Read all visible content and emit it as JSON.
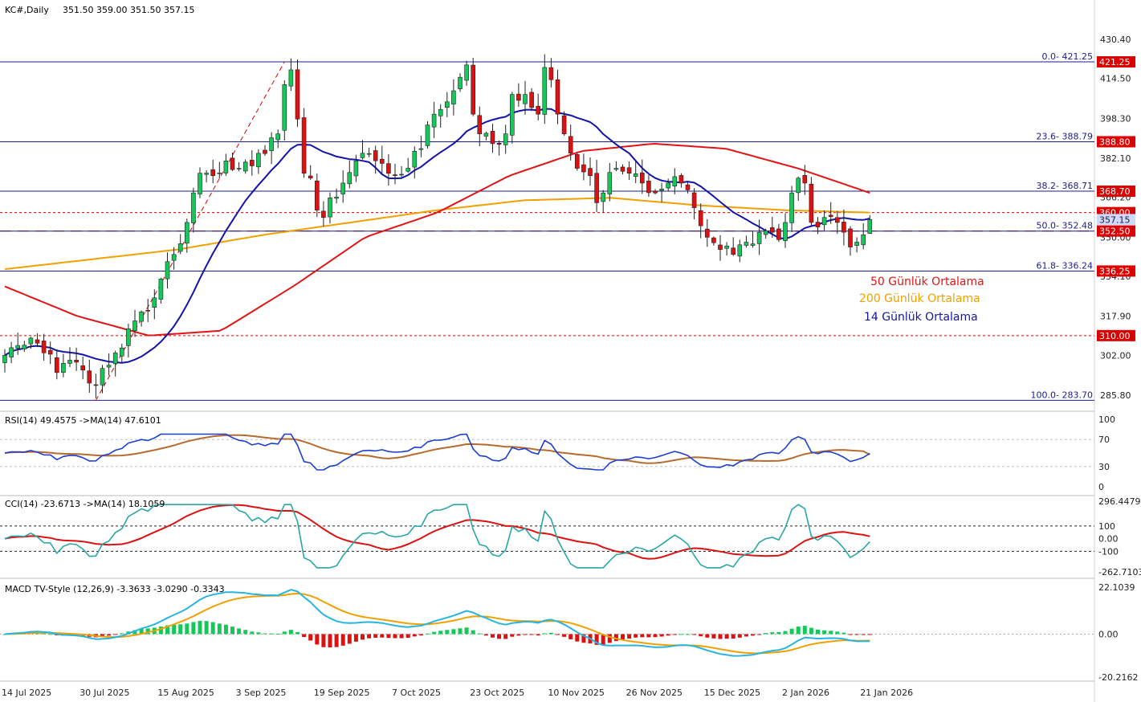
{
  "header": {
    "symbol": "KC#,Daily",
    "ohlc": "351.50 359.00 351.50 357.15"
  },
  "colors": {
    "bull": "#16c85a",
    "bear": "#dd1111",
    "ma14": "#1414a8",
    "ma50": "#e01414",
    "ma200": "#f0a000",
    "fib": "#1c1c8c",
    "level": "#dd0000",
    "rsi": "#1e3fcf",
    "rsi_ma": "#b86b2e",
    "cci": "#2aa6a6",
    "cci_ma": "#dd1111",
    "macd": "#27b5e0",
    "macd_signal": "#f0a000"
  },
  "chart_data": [
    {
      "type": "candlestick",
      "title": "KC#,Daily",
      "ylim": [
        283.7,
        434
      ],
      "price_ticks": [
        "430.40",
        "414.50",
        "398.30",
        "382.10",
        "366.20",
        "350.00",
        "334.10",
        "317.90",
        "302.00",
        "285.80"
      ],
      "fibonacci": [
        {
          "label": "0.0- 421.25",
          "price": 421.25
        },
        {
          "label": "23.6- 388.79",
          "price": 388.79
        },
        {
          "label": "38.2- 368.71",
          "price": 368.71
        },
        {
          "label": "50.0- 352.48",
          "price": 352.48
        },
        {
          "label": "61.8- 336.24",
          "price": 336.24
        },
        {
          "label": "100.0- 283.70",
          "price": 283.7
        }
      ],
      "levels": [
        {
          "label": "421.25",
          "price": 421.25,
          "style": "dashed",
          "tag": true
        },
        {
          "label": "388.80",
          "price": 388.8,
          "style": "dashed",
          "tag": true
        },
        {
          "label": "368.70",
          "price": 368.7,
          "style": "solid",
          "tag": true
        },
        {
          "label": "360.00",
          "price": 360.0,
          "style": "dotted",
          "tag": true
        },
        {
          "label": "352.50",
          "price": 352.5,
          "style": "dashed",
          "tag": true
        },
        {
          "label": "336.25",
          "price": 336.25,
          "style": "solid",
          "tag": true
        },
        {
          "label": "310.00",
          "price": 310.0,
          "style": "dotted",
          "tag": true
        }
      ],
      "current_price": {
        "label": "357.15",
        "price": 357.15
      },
      "date_labels": [
        {
          "label": "14 Jul 2025",
          "index": 0
        },
        {
          "label": "30 Jul 2025",
          "index": 12
        },
        {
          "label": "15 Aug 2025",
          "index": 24
        },
        {
          "label": "3 Sep 2025",
          "index": 36
        },
        {
          "label": "19 Sep 2025",
          "index": 48
        },
        {
          "label": "7 Oct 2025",
          "index": 60
        },
        {
          "label": "23 Oct 2025",
          "index": 72
        },
        {
          "label": "10 Nov 2025",
          "index": 84
        },
        {
          "label": "26 Nov 2025",
          "index": 96
        },
        {
          "label": "15 Dec 2025",
          "index": 108
        },
        {
          "label": "2 Jan 2026",
          "index": 120
        },
        {
          "label": "21 Jan 2026",
          "index": 132
        }
      ],
      "close_anchors": [
        [
          0,
          302
        ],
        [
          2,
          306
        ],
        [
          4,
          309
        ],
        [
          6,
          303
        ],
        [
          8,
          295
        ],
        [
          10,
          300
        ],
        [
          12,
          296
        ],
        [
          14,
          290
        ],
        [
          16,
          298
        ],
        [
          18,
          305
        ],
        [
          20,
          316
        ],
        [
          22,
          320
        ],
        [
          24,
          333
        ],
        [
          26,
          343
        ],
        [
          28,
          356
        ],
        [
          29,
          368
        ],
        [
          30,
          376
        ],
        [
          32,
          375
        ],
        [
          34,
          381
        ],
        [
          36,
          378
        ],
        [
          38,
          379
        ],
        [
          40,
          384
        ],
        [
          42,
          392
        ],
        [
          43,
          412
        ],
        [
          44,
          418
        ],
        [
          45,
          398
        ],
        [
          46,
          376
        ],
        [
          47,
          374
        ],
        [
          48,
          361
        ],
        [
          49,
          358
        ],
        [
          50,
          366
        ],
        [
          52,
          372
        ],
        [
          54,
          381
        ],
        [
          56,
          384
        ],
        [
          58,
          380
        ],
        [
          60,
          375
        ],
        [
          62,
          378
        ],
        [
          64,
          386
        ],
        [
          66,
          400
        ],
        [
          68,
          405
        ],
        [
          70,
          415
        ],
        [
          71,
          420
        ],
        [
          72,
          400
        ],
        [
          73,
          392
        ],
        [
          75,
          388
        ],
        [
          77,
          392
        ],
        [
          78,
          408
        ],
        [
          80,
          408
        ],
        [
          82,
          400
        ],
        [
          83,
          419
        ],
        [
          84,
          414
        ],
        [
          85,
          400
        ],
        [
          86,
          392
        ],
        [
          88,
          378
        ],
        [
          90,
          375
        ],
        [
          91,
          364
        ],
        [
          92,
          368
        ],
        [
          94,
          378
        ],
        [
          96,
          376
        ],
        [
          98,
          372
        ],
        [
          100,
          368
        ],
        [
          102,
          372
        ],
        [
          104,
          372
        ],
        [
          106,
          362
        ],
        [
          108,
          350
        ],
        [
          110,
          345
        ],
        [
          112,
          343
        ],
        [
          114,
          348
        ],
        [
          116,
          352
        ],
        [
          118,
          352
        ],
        [
          119,
          349
        ],
        [
          120,
          356
        ],
        [
          121,
          368
        ],
        [
          122,
          374
        ],
        [
          123,
          372
        ],
        [
          124,
          356
        ],
        [
          126,
          358
        ],
        [
          128,
          356
        ],
        [
          129,
          352
        ],
        [
          130,
          346
        ],
        [
          131,
          348
        ],
        [
          132,
          351
        ],
        [
          133,
          357.15
        ]
      ],
      "ohlc_last": {
        "open": 351.5,
        "high": 359.0,
        "low": 351.5,
        "close": 357.15
      },
      "legend": [
        {
          "label": "50 Günlük Ortalama",
          "color_key": "ma50"
        },
        {
          "label": "200 Günlük Ortalama",
          "color_key": "ma200"
        },
        {
          "label": "14 Günlük Ortalama",
          "color_key": "ma14"
        }
      ]
    },
    {
      "type": "line",
      "title": "RSI(14) 49.4575  ->MA(14) 47.6101",
      "ylim": [
        0,
        100
      ],
      "ticks": [
        "100",
        "70",
        "30",
        "0"
      ],
      "levels": [
        70,
        30
      ],
      "rsi_last": 49.4575,
      "rsi_ma_last": 47.6101
    },
    {
      "type": "line",
      "title": "CCI(14) -23.6713  ->MA(14) 18.1059",
      "ylim": [
        -262.7103,
        296.4479
      ],
      "ticks": [
        "296.4479",
        "100",
        "0.00",
        "-100",
        "-262.7103"
      ],
      "cci_last": -23.6713,
      "cci_ma_last": 18.1059
    },
    {
      "type": "bar",
      "title": "MACD TV-Style (12,26,9) -3.3633 -3.0290 -0.3343",
      "ylim": [
        -20.2162,
        22.1039
      ],
      "ticks": [
        "22.1039",
        "0.00",
        "-20.2162"
      ],
      "macd_last": -3.3633,
      "signal_last": -3.029,
      "hist_last": -0.3343
    }
  ]
}
